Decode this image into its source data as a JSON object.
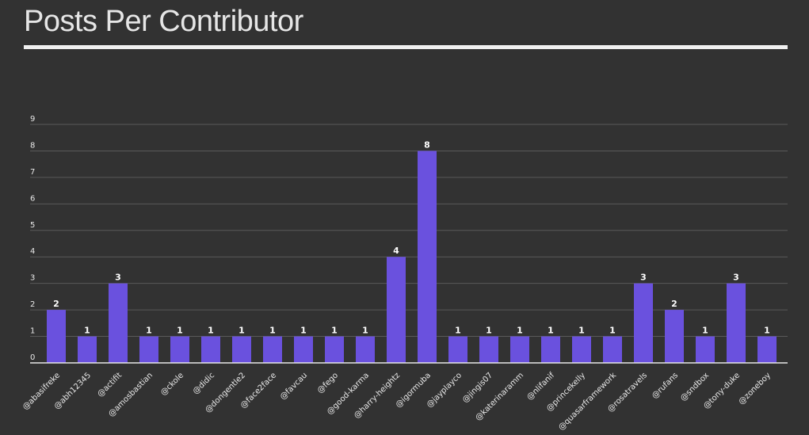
{
  "chart_data": {
    "type": "bar",
    "title": "Posts Per Contributor",
    "xlabel": "",
    "ylabel": "",
    "ylim": [
      0,
      9
    ],
    "yticks": [
      "0",
      "1",
      "2",
      "3",
      "4",
      "5",
      "6",
      "7",
      "8",
      "9"
    ],
    "grid": true,
    "legend": "none",
    "bar_color": "#6a51de",
    "background_color": "#323232",
    "categories": [
      "@abasifreke",
      "@abh12345",
      "@actifit",
      "@amosbastian",
      "@ckole",
      "@didic",
      "@dongentle2",
      "@face2face",
      "@favcau",
      "@fego",
      "@good-karma",
      "@harry-heightz",
      "@igormuba",
      "@jayplayco",
      "@jingis07",
      "@katerinaramm",
      "@nlifanif",
      "@princekelly",
      "@quasarframework",
      "@rosatravels",
      "@rufans",
      "@sndbox",
      "@tony-duke",
      "@zoneboy"
    ],
    "values": [
      2,
      1,
      3,
      1,
      1,
      1,
      1,
      1,
      1,
      1,
      1,
      4,
      8,
      1,
      1,
      1,
      1,
      1,
      1,
      3,
      2,
      1,
      3,
      1
    ],
    "data_labels": [
      "2",
      "1",
      "3",
      "1",
      "1",
      "1",
      "1",
      "1",
      "1",
      "1",
      "1",
      "4",
      "8",
      "1",
      "1",
      "1",
      "1",
      "1",
      "1",
      "3",
      "2",
      "1",
      "3",
      "1"
    ]
  }
}
